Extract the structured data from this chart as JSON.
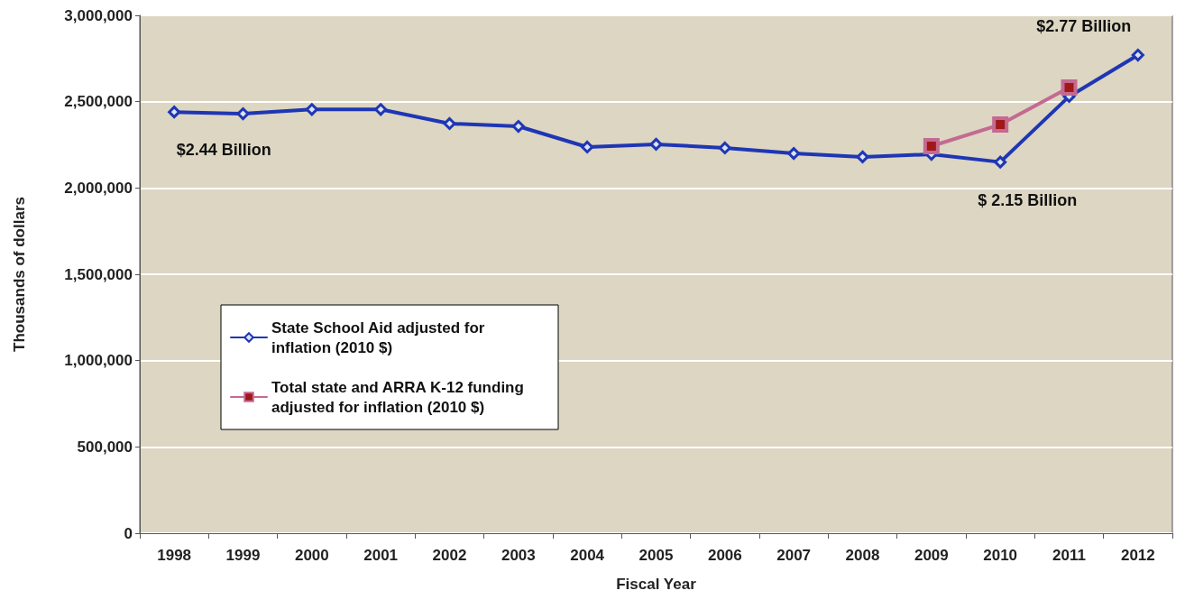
{
  "chart_data": {
    "type": "line",
    "xlabel": "Fiscal Year",
    "ylabel": "Thousands of dollars",
    "categories": [
      "1998",
      "1999",
      "2000",
      "2001",
      "2002",
      "2003",
      "2004",
      "2005",
      "2006",
      "2007",
      "2008",
      "2009",
      "2010",
      "2011",
      "2012"
    ],
    "series": [
      {
        "name": "State School Aid adjusted for inflation (2010 $)",
        "color": "#1f36b4",
        "marker": "diamond",
        "values": [
          2440000,
          2430000,
          2455000,
          2455000,
          2373000,
          2357000,
          2237000,
          2253000,
          2232000,
          2200000,
          2180000,
          2195000,
          2150000,
          2530000,
          2770000
        ]
      },
      {
        "name": "Total state and ARRA K-12 funding adjusted for inflation (2010 $)",
        "color": "#c46a92",
        "marker": "square",
        "values": [
          null,
          null,
          null,
          null,
          null,
          null,
          null,
          null,
          null,
          null,
          null,
          2242000,
          2367000,
          2582000,
          null
        ]
      }
    ],
    "ylim": [
      0,
      3000000
    ],
    "yticks": [
      {
        "value": 0,
        "label": "0"
      },
      {
        "value": 500000,
        "label": "500,000"
      },
      {
        "value": 1000000,
        "label": "1,000,000"
      },
      {
        "value": 1500000,
        "label": "1,500,000"
      },
      {
        "value": 2000000,
        "label": "2,000,000"
      },
      {
        "value": 2500000,
        "label": "2,500,000"
      },
      {
        "value": 3000000,
        "label": "3,000,000"
      }
    ],
    "grid": "y",
    "legend": "center left",
    "line_style": "solid",
    "annotations": [
      {
        "text": "$2.44 Billion",
        "x": "1998",
        "y": 2440000
      },
      {
        "text": "$ 2.15 Billion",
        "x": "2010",
        "y": 2150000
      },
      {
        "text": "$2.77 Billion",
        "x": "2012",
        "y": 2770000
      }
    ]
  }
}
